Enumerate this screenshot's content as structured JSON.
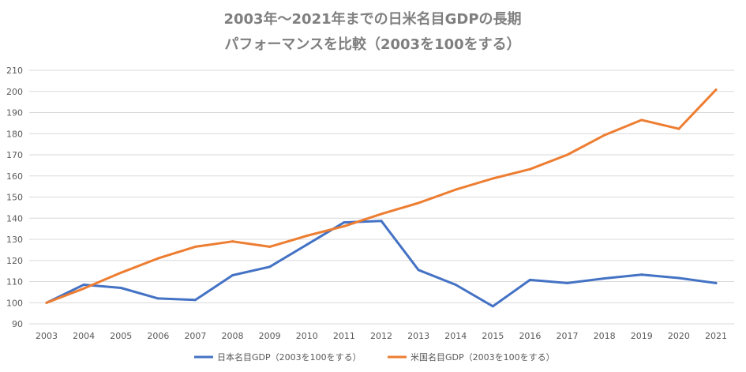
{
  "chart_data": {
    "type": "line",
    "title": "2003年～2021年までの日米名目GDPの長期",
    "subtitle": "パフォーマンスを比較（2003を100をする）",
    "xlabel": "",
    "ylabel": "",
    "x": [
      "2003",
      "2004",
      "2005",
      "2006",
      "2007",
      "2008",
      "2009",
      "2010",
      "2011",
      "2012",
      "2013",
      "2014",
      "2015",
      "2016",
      "2017",
      "2018",
      "2019",
      "2020",
      "2021"
    ],
    "ylim": [
      90,
      210
    ],
    "yticks": [
      90,
      100,
      110,
      120,
      130,
      140,
      150,
      160,
      170,
      180,
      190,
      200,
      210
    ],
    "grid": true,
    "legend_position": "bottom",
    "series": [
      {
        "name": "日本名目GDP（2003を100をする）",
        "color": "#4472c4",
        "values": [
          100,
          108.5,
          107,
          102,
          101.3,
          113,
          117,
          127.5,
          138,
          138.7,
          115.5,
          108.5,
          98.3,
          110.8,
          109.3,
          111.5,
          113.3,
          111.7,
          109.3
        ]
      },
      {
        "name": "米国名目GDP（2003を100をする）",
        "color": "#ed7d31",
        "values": [
          100,
          106.7,
          114.2,
          121,
          126.5,
          129,
          126.5,
          131.7,
          136.2,
          142,
          147.2,
          153.5,
          158.8,
          163.2,
          170,
          179.3,
          186.5,
          182.3,
          200.8
        ]
      }
    ]
  }
}
